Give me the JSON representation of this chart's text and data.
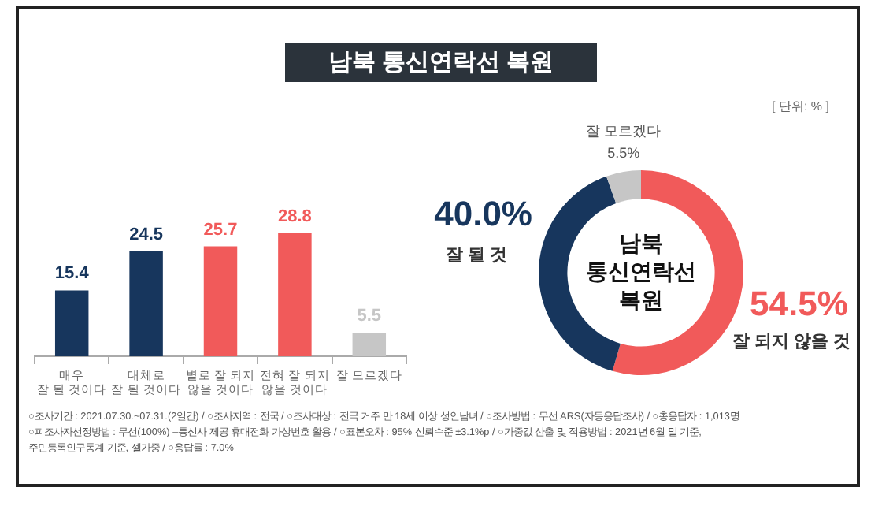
{
  "chart_data": [
    {
      "type": "bar",
      "title": "남북 통신연락선 복원",
      "categories": [
        "매우\n잘 될 것이다",
        "대체로\n잘 될 것이다",
        "별로 잘 되지\n않을 것이다",
        "전혀 잘 되지\n않을 것이다",
        "잘 모르겠다"
      ],
      "values": [
        15.4,
        24.5,
        25.7,
        28.8,
        5.5
      ],
      "colors": [
        "#17365d",
        "#17365d",
        "#f15a5a",
        "#f15a5a",
        "#c6c6c6"
      ],
      "data_labels": true,
      "tick_labels": "x",
      "annotations": [
        "○조사기간 : 2021.07.30.~07.31.(2일간) / ○조사지역 : 전국 / ○조사대상 : 전국 거주 만 18세 이상 성인남녀 / ○조사방법 : 무선 ARS(자동응답조사) / ○총응답자 : 1,013명",
        "○피조사자선정방법 : 무선(100%) –통신사 제공 휴대전화 가상번호 활용 / ○표본오차 : 95% 신뢰수준 ±3.1%p / ○가중값 산출 및 적용방법 : 2021년 6월 말 기준,",
        "주민등록인구통계 기준, 셀가중 / ○응답률 : 7.0%"
      ]
    },
    {
      "type": "donut",
      "categories": [
        "잘 되지 않을 것",
        "잘 될 것",
        "잘 모르겠다"
      ],
      "values": [
        54.5,
        40.0,
        5.5
      ],
      "colors": [
        "#f15a5a",
        "#17365d",
        "#c6c6c6"
      ],
      "value_labels": [
        "54.5%",
        "40.0%",
        "5.5%"
      ],
      "annotations": [
        "남북\n통신연락선\n복원",
        "[ 단위: % ]"
      ]
    }
  ]
}
